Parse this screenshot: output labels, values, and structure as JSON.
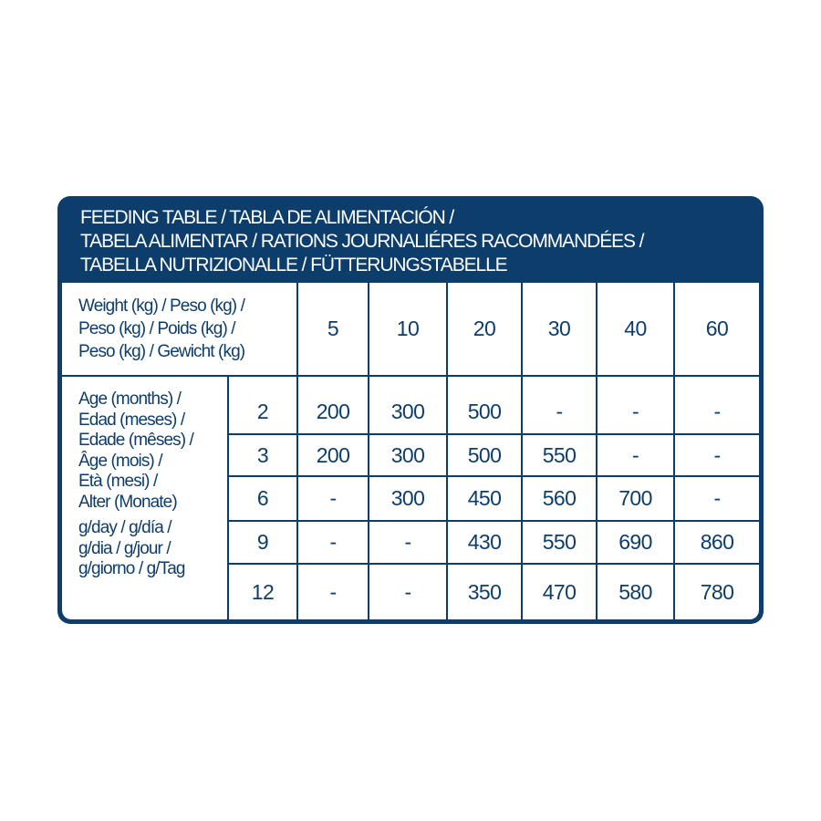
{
  "title_lines": [
    "FEEDING TABLE / TABLA DE ALIMENTACIÓN /",
    "TABELA ALIMENTAR / RATIONS JOURNALIÉRES RACOMMANDÉES /",
    "TABELLA NUTRIZIONALLE / FÜTTERUNGSTABELLE"
  ],
  "weight_label_lines": [
    "Weight (kg) / Peso (kg) /",
    "Peso (kg) / Poids (kg) /",
    "Peso (kg) / Gewicht (kg)"
  ],
  "weights": [
    "5",
    "10",
    "20",
    "30",
    "40",
    "60"
  ],
  "age_label_lines": [
    "Age (months) /",
    "Edad (meses) /",
    "Edade (mêses) /",
    "Âge (mois) /",
    "Età (mesi) /",
    "Alter (Monate)"
  ],
  "unit_label_lines": [
    "g/day / g/día /",
    "g/dia / g/jour /",
    "g/giorno / g/Tag"
  ],
  "rows": [
    {
      "age": "2",
      "values": [
        "200",
        "300",
        "500",
        "-",
        "-",
        "-"
      ]
    },
    {
      "age": "3",
      "values": [
        "200",
        "300",
        "500",
        "550",
        "-",
        "-"
      ]
    },
    {
      "age": "6",
      "values": [
        "-",
        "300",
        "450",
        "560",
        "700",
        "-"
      ]
    },
    {
      "age": "9",
      "values": [
        "-",
        "-",
        "430",
        "550",
        "690",
        "860"
      ]
    },
    {
      "age": "12",
      "values": [
        "-",
        "-",
        "350",
        "470",
        "580",
        "780"
      ]
    }
  ],
  "colors": {
    "brand_blue": "#0d3d6a",
    "background": "#ffffff"
  }
}
